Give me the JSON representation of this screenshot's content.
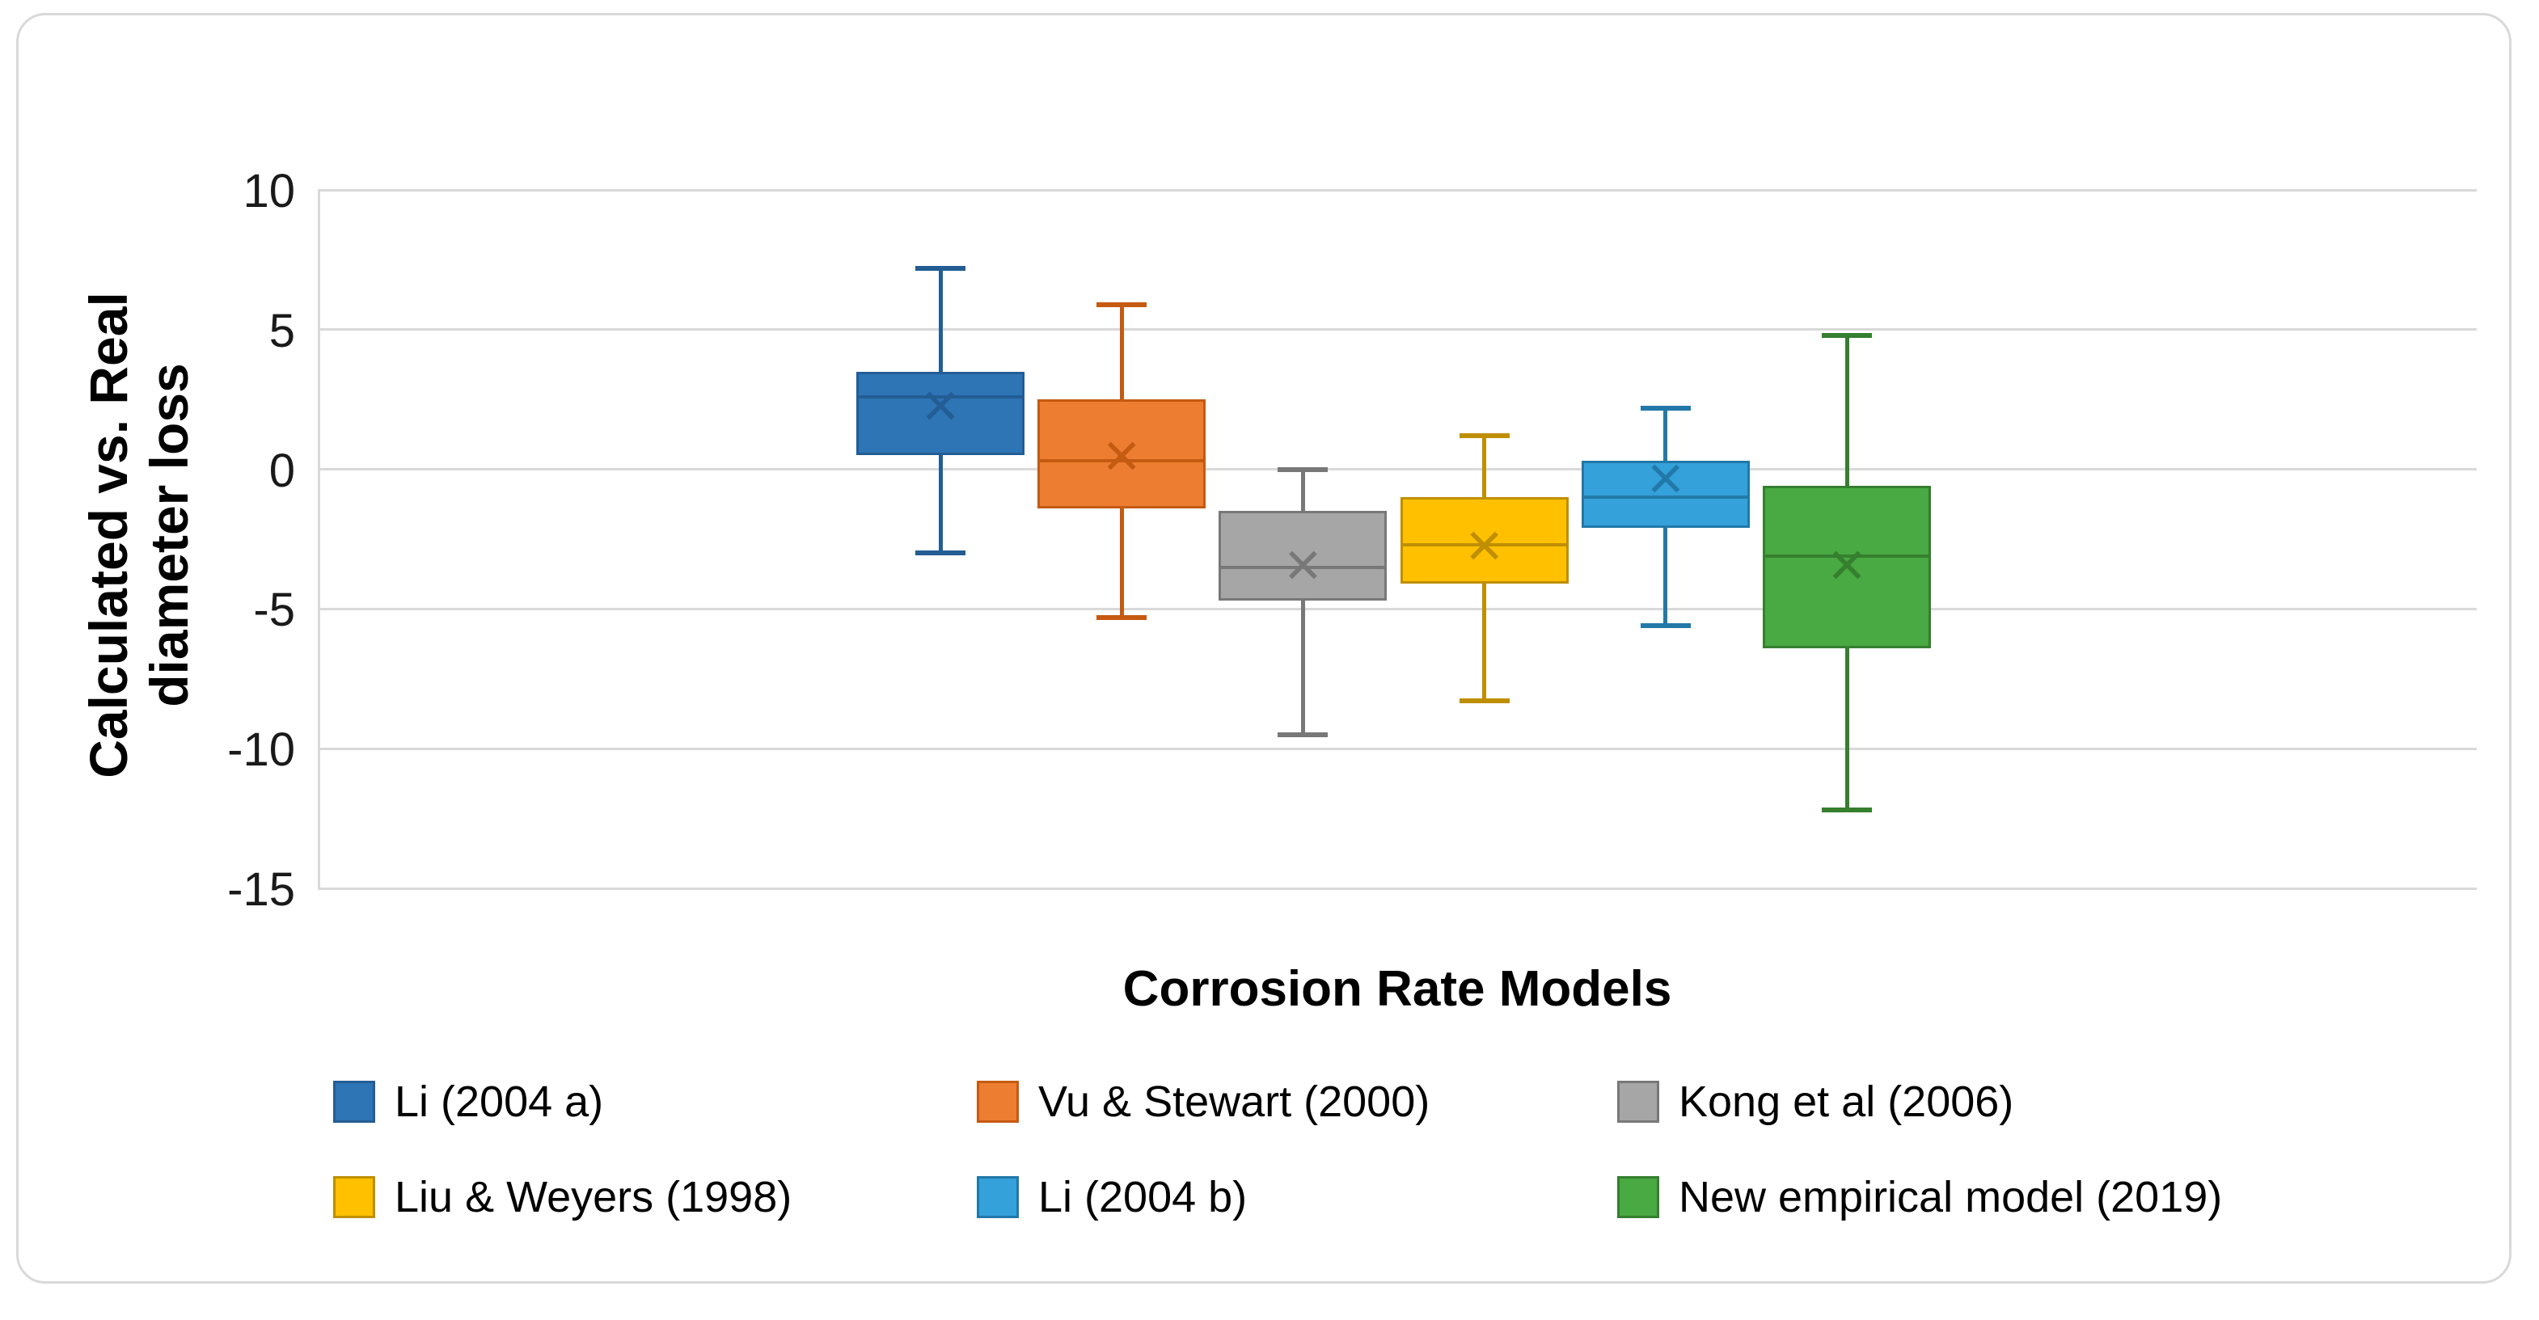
{
  "figure": {
    "background": "#FFFFFF",
    "border_color": "#D9D9D9"
  },
  "y_axis": {
    "title_lines": [
      "Calculated vs. Real",
      "diameter loss"
    ],
    "tick_labels": [
      "10",
      "5",
      "0",
      "-5",
      "-10",
      "-15"
    ],
    "min": -15,
    "max": 10,
    "step": 5,
    "gridline_color": "#D9D9D9",
    "axis_line_color": "#D9D9D9",
    "tick_color": "#1A1A1A",
    "title_color": "#000000"
  },
  "x_axis": {
    "title": "Corrosion Rate Models",
    "title_color": "#000000"
  },
  "chart_data": {
    "type": "boxplot",
    "title": "",
    "xlabel": "Corrosion Rate Models",
    "ylabel": "Calculated vs. Real diameter loss",
    "ylim": [
      -15,
      10
    ],
    "ytick_step": 5,
    "grid": "horizontal-only",
    "legend_position": "bottom",
    "mean_marker_glyph": "×",
    "categories": [
      "Li (2004 a)",
      "Vu & Stewart (2000)",
      "Kong et al (2006)",
      "Liu & Weyers (1998)",
      "Li (2004 b)",
      "New empirical model (2019)"
    ],
    "series": [
      {
        "name": "Li (2004 a)",
        "fill": "#2E75B6",
        "line": "#235D94",
        "min": -3.0,
        "q1": 0.5,
        "median": 2.6,
        "mean": 2.3,
        "q3": 3.5,
        "max": 7.2
      },
      {
        "name": "Vu & Stewart (2000)",
        "fill": "#ED7D31",
        "line": "#C55A11",
        "min": -5.3,
        "q1": -1.4,
        "median": 0.3,
        "mean": 0.5,
        "q3": 2.5,
        "max": 5.9
      },
      {
        "name": "Kong et al (2006)",
        "fill": "#A6A6A6",
        "line": "#787878",
        "min": -9.5,
        "q1": -4.7,
        "median": -3.5,
        "mean": -3.4,
        "q3": -1.5,
        "max": 0.0
      },
      {
        "name": "Liu & Weyers (1998)",
        "fill": "#FFC000",
        "line": "#BF8F00",
        "min": -8.3,
        "q1": -4.1,
        "median": -2.7,
        "mean": -2.7,
        "q3": -1.0,
        "max": 1.2
      },
      {
        "name": "Li (2004 b)",
        "fill": "#35A1DB",
        "line": "#2279A8",
        "min": -5.6,
        "q1": -2.1,
        "median": -1.0,
        "mean": -0.3,
        "q3": 0.3,
        "max": 2.2
      },
      {
        "name": "New empirical model (2019)",
        "fill": "#49A942",
        "line": "#357F2F",
        "min": -12.2,
        "q1": -6.4,
        "median": -3.1,
        "mean": -3.4,
        "q3": -0.6,
        "max": 4.8
      }
    ]
  }
}
